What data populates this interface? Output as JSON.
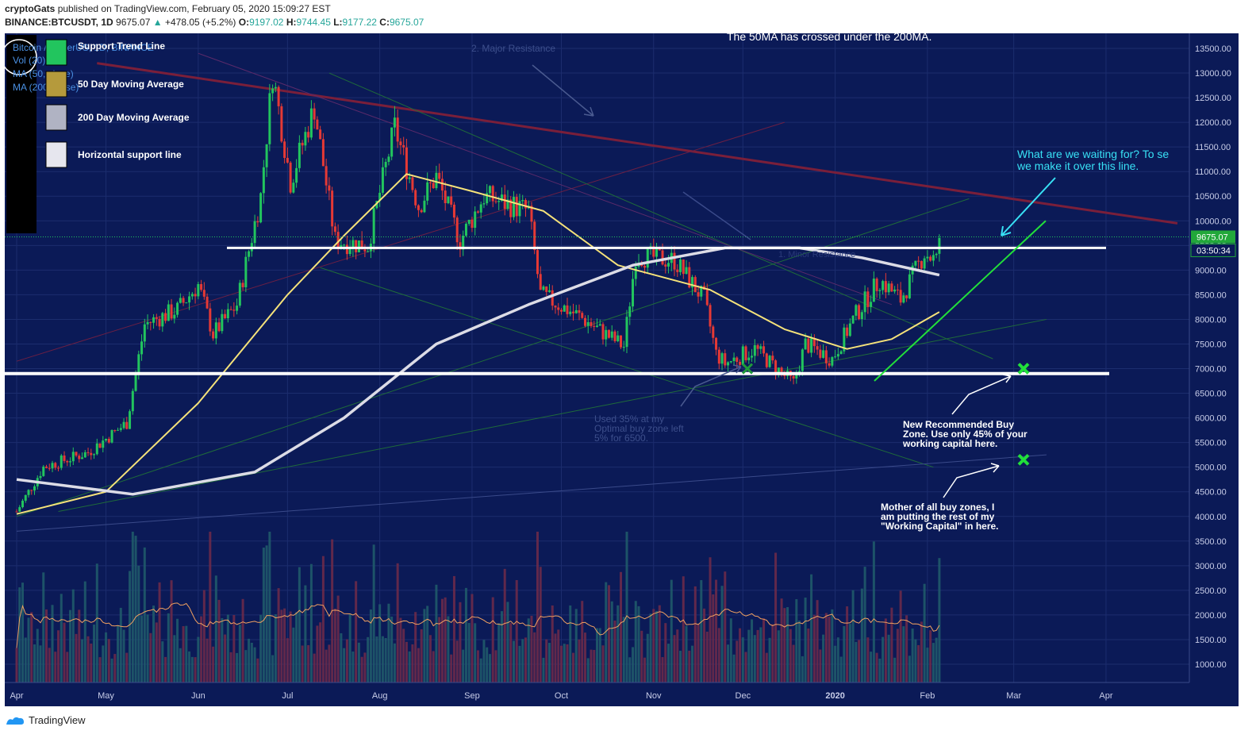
{
  "header": {
    "author": "cryptoGats",
    "published": "published on TradingView.com, February 05, 2020 15:09:27 EST",
    "symbol": "BINANCE:BTCUSDT, 1D",
    "last": "9675.07",
    "change": "+478.05 (+5.2%)",
    "o_label": "O:",
    "o": "9197.02",
    "h_label": "H:",
    "h": "9744.45",
    "l_label": "L:",
    "l": "9177.22",
    "c_label": "C:",
    "c": "9675.07"
  },
  "indicators": {
    "title": "Bitcoin / TetherUS, 1D, BINANCE",
    "vol": "Vol (20)",
    "ma50": "MA (50, close)",
    "ma200": "MA (200, close)"
  },
  "legend": [
    {
      "label": "Support Trend Line",
      "color": "#22c55e"
    },
    {
      "label": "50 Day Moving Average",
      "color": "#b59a3c"
    },
    {
      "label": "200 Day Moving Average",
      "color": "#b0b3c3"
    },
    {
      "label": "Horizontal support line",
      "color": "#e6e6ee"
    }
  ],
  "annotations": {
    "cross_note": "The 50MA has crossed under the 200MA.",
    "major_resistance": "2. Major Resistance",
    "waiting_1": "What are we waiting for? To se",
    "waiting_2": "we make it over this line.",
    "used_1": "Used 35% at my",
    "used_2": "Optimal buy zone left",
    "used_3": "5% for 6500.",
    "buy_1": "New Recommended Buy",
    "buy_2": "Zone. Use only 45% of your",
    "buy_3": "working capital here.",
    "mother_1": "Mother of all buy zones, I",
    "mother_2": "am putting the rest of my",
    "mother_3": "\"Working Capital\" in here.",
    "minor_resistance": "1. Minor Resistance"
  },
  "price_badge": "9675.07",
  "countdown": "03:50:34",
  "footer_brand": "TradingView",
  "colors": {
    "background": "#0b1a57",
    "up": "#22c55e",
    "down": "#e53935",
    "ma50": "#f5e27a",
    "ma200": "#dcdce6",
    "support_trend": "#22e03a",
    "cyan_note": "#38e1f5"
  },
  "chart_data": {
    "type": "candlestick",
    "title": "Bitcoin / TetherUS, 1D, BINANCE",
    "x_ticks": [
      "Apr",
      "May",
      "Jun",
      "Jul",
      "Aug",
      "Sep",
      "Oct",
      "Nov",
      "Dec",
      "2020",
      "Feb",
      "Mar",
      "Apr"
    ],
    "y_ticks": [
      1000,
      1500,
      2000,
      2500,
      3000,
      3500,
      4000,
      4500,
      5000,
      5500,
      6000,
      6500,
      7000,
      7500,
      8000,
      8500,
      9000,
      9500,
      10000,
      10500,
      11000,
      11500,
      12000,
      12500,
      13000,
      13500
    ],
    "ylim": [
      500,
      13800
    ],
    "ylabel": "",
    "price_path": [
      [
        "2019-04-01",
        4100
      ],
      [
        "2019-04-10",
        5000
      ],
      [
        "2019-04-25",
        5300
      ],
      [
        "2019-05-08",
        5900
      ],
      [
        "2019-05-14",
        7900
      ],
      [
        "2019-05-25",
        8200
      ],
      [
        "2019-06-01",
        8700
      ],
      [
        "2019-06-06",
        7700
      ],
      [
        "2019-06-14",
        8300
      ],
      [
        "2019-06-22",
        10500
      ],
      [
        "2019-06-26",
        13000
      ],
      [
        "2019-07-02",
        10800
      ],
      [
        "2019-07-10",
        12300
      ],
      [
        "2019-07-17",
        9600
      ],
      [
        "2019-07-28",
        9500
      ],
      [
        "2019-08-06",
        11900
      ],
      [
        "2019-08-14",
        10300
      ],
      [
        "2019-08-20",
        10900
      ],
      [
        "2019-08-28",
        9600
      ],
      [
        "2019-09-05",
        10500
      ],
      [
        "2019-09-20",
        10200
      ],
      [
        "2019-09-24",
        8500
      ],
      [
        "2019-10-06",
        8100
      ],
      [
        "2019-10-22",
        7450
      ],
      [
        "2019-10-26",
        9300
      ],
      [
        "2019-11-08",
        9200
      ],
      [
        "2019-11-18",
        8400
      ],
      [
        "2019-11-22",
        7300
      ],
      [
        "2019-11-25",
        7100
      ],
      [
        "2019-12-05",
        7400
      ],
      [
        "2019-12-16",
        6800
      ],
      [
        "2019-12-18",
        6700
      ],
      [
        "2019-12-22",
        7500
      ],
      [
        "2019-12-31",
        7200
      ],
      [
        "2020-01-08",
        8100
      ],
      [
        "2020-01-16",
        8800
      ],
      [
        "2020-01-23",
        8400
      ],
      [
        "2020-01-31",
        9350
      ],
      [
        "2020-02-04",
        9190
      ],
      [
        "2020-02-05",
        9675
      ]
    ],
    "horizontal_levels": [
      9450,
      6900
    ],
    "buy_zones": [
      7000,
      5150
    ],
    "series": [
      {
        "name": "MA (50, close)",
        "points": [
          [
            "2019-04-01",
            4050
          ],
          [
            "2019-05-01",
            4500
          ],
          [
            "2019-06-01",
            6300
          ],
          [
            "2019-07-01",
            8500
          ],
          [
            "2019-07-20",
            9700
          ],
          [
            "2019-08-10",
            10950
          ],
          [
            "2019-09-01",
            10600
          ],
          [
            "2019-09-25",
            10200
          ],
          [
            "2019-10-20",
            9100
          ],
          [
            "2019-11-20",
            8600
          ],
          [
            "2019-12-15",
            7800
          ],
          [
            "2020-01-05",
            7400
          ],
          [
            "2020-01-20",
            7600
          ],
          [
            "2020-02-05",
            8150
          ]
        ]
      },
      {
        "name": "MA (200, close)",
        "points": [
          [
            "2019-04-01",
            4750
          ],
          [
            "2019-05-10",
            4450
          ],
          [
            "2019-06-20",
            4900
          ],
          [
            "2019-07-20",
            6000
          ],
          [
            "2019-08-20",
            7500
          ],
          [
            "2019-09-20",
            8300
          ],
          [
            "2019-10-25",
            9100
          ],
          [
            "2019-11-25",
            9450
          ],
          [
            "2019-12-20",
            9450
          ],
          [
            "2020-01-10",
            9250
          ],
          [
            "2020-02-05",
            8900
          ]
        ]
      }
    ],
    "volume_ma_label": "Vol (20)"
  }
}
